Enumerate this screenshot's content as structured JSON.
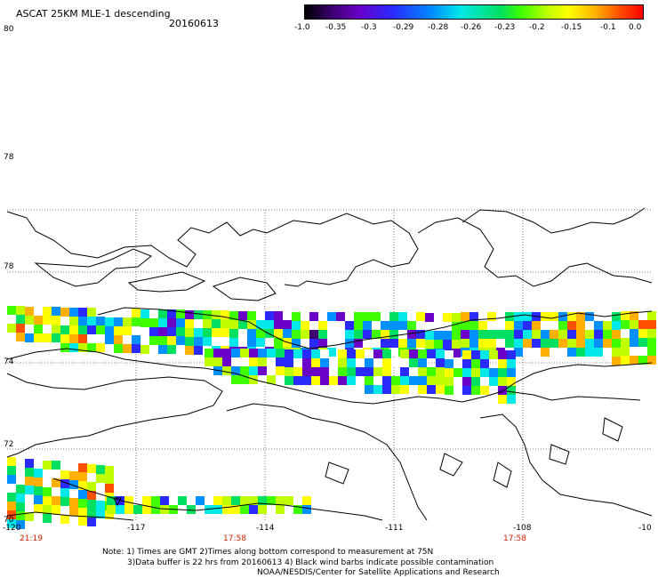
{
  "header": {
    "title": "ASCAT 25KM MLE-1 descending",
    "date": "20160613"
  },
  "colorbar": {
    "ticks": [
      "-1.0",
      "-0.35",
      "-0.3",
      "-0.29",
      "-0.28",
      "-0.26",
      "-0.23",
      "-0.2",
      "-0.15",
      "-0.1",
      "0.0"
    ]
  },
  "map": {
    "lat_labels": [
      "80",
      "78",
      "78",
      "74",
      "72",
      "70"
    ],
    "lon_labels": [
      "-120",
      "-117",
      "-114",
      "-111",
      "-108",
      "-10"
    ],
    "time_labels": [
      "21:19",
      "17:58",
      "17:58"
    ],
    "colors": {
      "grid": "#555555",
      "coast": "#000000",
      "time_text": "#cc2200"
    }
  },
  "notes": {
    "line1": "Note: 1) Times are GMT 2)Times along bottom correspond to measurement at 75N",
    "line2": "3)Data buffer is 22 hrs from 20160613 4) Black wind barbs indicate possible contamination",
    "line3": "NOAA/NESDIS/Center for Satellite Applications and Research"
  }
}
